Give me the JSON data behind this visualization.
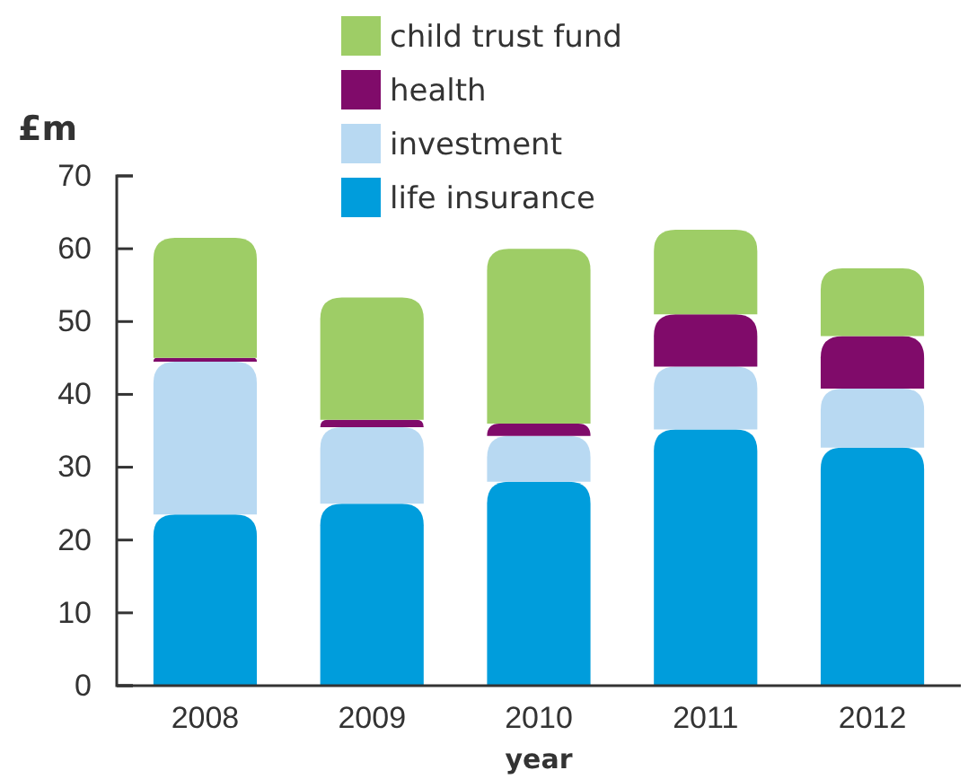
{
  "chart_data": {
    "type": "bar",
    "stacked": true,
    "xlabel": "year",
    "ylabel": "£m",
    "categories": [
      "2008",
      "2009",
      "2010",
      "2011",
      "2012"
    ],
    "series": [
      {
        "name": "life insurance",
        "color": "#009ddc",
        "values": [
          23.5,
          25,
          28,
          35.2,
          32.7
        ]
      },
      {
        "name": "investment",
        "color": "#b8d9f2",
        "values": [
          21,
          10.5,
          6.3,
          8.6,
          8.1
        ]
      },
      {
        "name": "health",
        "color": "#800b6a",
        "values": [
          0.5,
          1,
          1.7,
          7.2,
          7.2
        ]
      },
      {
        "name": "child trust fund",
        "color": "#9ecd66",
        "values": [
          16.5,
          16.8,
          24,
          11.6,
          9.3
        ]
      }
    ],
    "ylim": [
      0,
      70
    ],
    "yticks": [
      0,
      10,
      20,
      30,
      40,
      50,
      60,
      70
    ],
    "grid": false,
    "legend": "top"
  }
}
